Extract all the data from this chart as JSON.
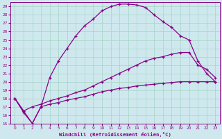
{
  "xlabel": "Windchill (Refroidissement éolien,°C)",
  "background_color": "#cfe8ee",
  "grid_color": "#aad8cc",
  "line_color": "#880088",
  "xlim": [
    -0.5,
    23.5
  ],
  "ylim": [
    15,
    29.5
  ],
  "x_ticks": [
    0,
    1,
    2,
    3,
    4,
    5,
    6,
    7,
    8,
    9,
    10,
    11,
    12,
    13,
    14,
    15,
    16,
    17,
    18,
    19,
    20,
    21,
    22,
    23
  ],
  "y_ticks": [
    15,
    16,
    17,
    18,
    19,
    20,
    21,
    22,
    23,
    24,
    25,
    26,
    27,
    28,
    29
  ],
  "series": [
    {
      "x": [
        0,
        1,
        2,
        3,
        4,
        5,
        6,
        7,
        8,
        9,
        10,
        11,
        12,
        13,
        14,
        15,
        16,
        17,
        18,
        19,
        20,
        21,
        22,
        23
      ],
      "y": [
        18,
        16.3,
        15,
        17,
        20.5,
        22.5,
        24,
        25.5,
        26.7,
        27.5,
        28.5,
        29.0,
        29.3,
        29.3,
        29.2,
        28.9,
        28.0,
        27.2,
        26.5,
        25.5,
        25.0,
        22.5,
        21.0,
        20.0
      ]
    },
    {
      "x": [
        0,
        1,
        2,
        3,
        4,
        5,
        6,
        7,
        8,
        9,
        10,
        11,
        12,
        13,
        14,
        15,
        16,
        17,
        18,
        19,
        20,
        21,
        22,
        23
      ],
      "y": [
        18,
        16.5,
        17.0,
        17.3,
        17.7,
        18.0,
        18.3,
        18.7,
        19.0,
        19.5,
        20.0,
        20.5,
        21.0,
        21.5,
        22.0,
        22.5,
        22.8,
        23.0,
        23.3,
        23.5,
        23.5,
        22.0,
        21.5,
        20.5
      ]
    },
    {
      "x": [
        0,
        1,
        2,
        3,
        4,
        5,
        6,
        7,
        8,
        9,
        10,
        11,
        12,
        13,
        14,
        15,
        16,
        17,
        18,
        19,
        20,
        21,
        22,
        23
      ],
      "y": [
        18,
        16.5,
        15.0,
        17.0,
        17.3,
        17.5,
        17.8,
        18.0,
        18.2,
        18.5,
        18.8,
        19.0,
        19.2,
        19.3,
        19.5,
        19.6,
        19.7,
        19.8,
        19.9,
        20.0,
        20.0,
        20.0,
        20.0,
        20.0
      ]
    }
  ]
}
